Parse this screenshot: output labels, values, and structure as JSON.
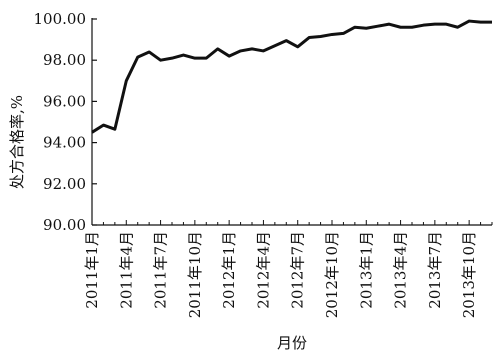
{
  "chart_data": {
    "type": "line",
    "title": "",
    "xlabel": "月份",
    "ylabel": "处方合格率,%",
    "ylim": [
      90,
      100
    ],
    "yticks": [
      "90.00",
      "92.00",
      "94.00",
      "96.00",
      "98.00",
      "100.00"
    ],
    "x_tick_labels": [
      "2011年1月",
      "2011年4月",
      "2011年7月",
      "2011年10月",
      "2012年1月",
      "2012年4月",
      "2012年7月",
      "2012年10月",
      "2013年1月",
      "2013年4月",
      "2013年7月",
      "2013年10月"
    ],
    "x": [
      "2011-01",
      "2011-02",
      "2011-03",
      "2011-04",
      "2011-05",
      "2011-06",
      "2011-07",
      "2011-08",
      "2011-09",
      "2011-10",
      "2011-11",
      "2011-12",
      "2012-01",
      "2012-02",
      "2012-03",
      "2012-04",
      "2012-05",
      "2012-06",
      "2012-07",
      "2012-08",
      "2012-09",
      "2012-10",
      "2012-11",
      "2012-12",
      "2013-01",
      "2013-02",
      "2013-03",
      "2013-04",
      "2013-05",
      "2013-06",
      "2013-07",
      "2013-08",
      "2013-09",
      "2013-10",
      "2013-11",
      "2013-12"
    ],
    "series": [
      {
        "values": [
          94.5,
          94.85,
          94.65,
          97.0,
          98.15,
          98.4,
          98.0,
          98.1,
          98.25,
          98.1,
          98.1,
          98.55,
          98.2,
          98.45,
          98.55,
          98.45,
          98.7,
          98.95,
          98.65,
          99.1,
          99.15,
          99.25,
          99.3,
          99.6,
          99.55,
          99.65,
          99.75,
          99.6,
          99.6,
          99.7,
          99.75,
          99.75,
          99.6,
          99.9,
          99.85,
          99.85
        ]
      }
    ],
    "grid": false,
    "legend": "none"
  }
}
